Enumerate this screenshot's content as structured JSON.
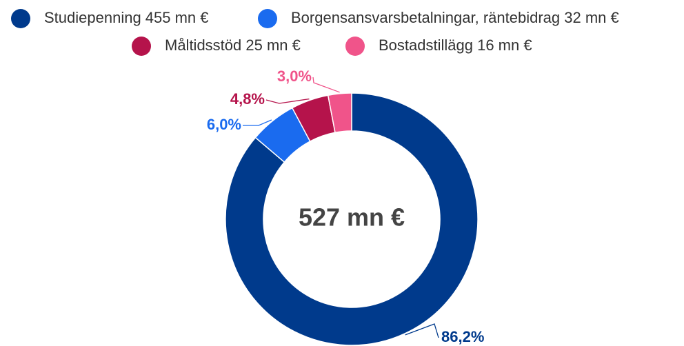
{
  "chart_data": {
    "type": "pie",
    "categories": [
      "Studiepenning 455 mn €",
      "Borgensansvarsbetalningar, räntebidrag 32 mn €",
      "Måltidsstöd 25 mn €",
      "Bostadstillägg 16 mn €"
    ],
    "values": [
      86.2,
      6.0,
      4.8,
      3.0
    ],
    "value_labels": [
      "86,2%",
      "6,0%",
      "4,8%",
      "3,0%"
    ],
    "colors": [
      "#003a8c",
      "#1a6bef",
      "#b5134b",
      "#f0548a"
    ],
    "center_label": "527 mn €"
  }
}
